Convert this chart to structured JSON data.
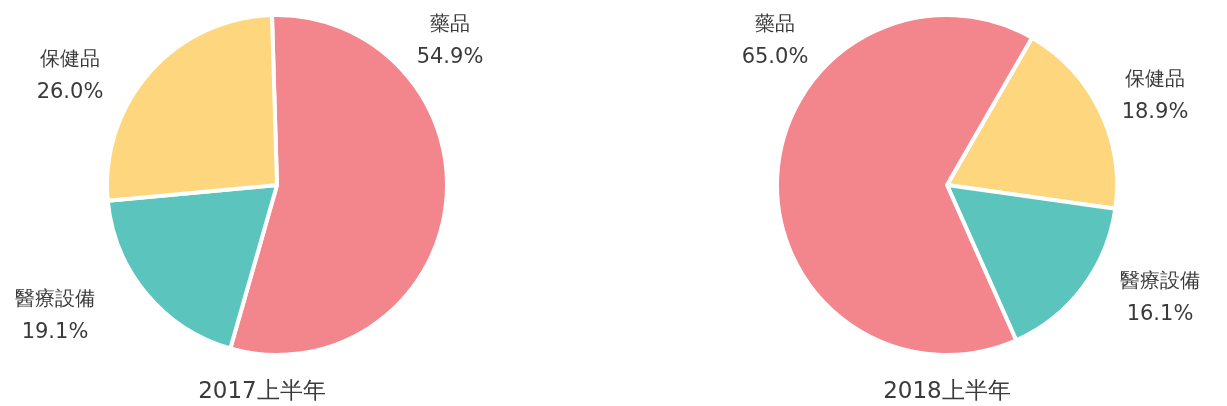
{
  "chart_data": [
    {
      "type": "pie",
      "title": "2017上半年",
      "categories": [
        "藥品",
        "醫療設備",
        "保健品"
      ],
      "values": [
        54.9,
        19.1,
        26.0
      ],
      "colors": [
        "#f3868c",
        "#5bc5bd",
        "#fdd67e"
      ],
      "value_labels": [
        "54.9%",
        "19.1%",
        "26.0%"
      ]
    },
    {
      "type": "pie",
      "title": "2018上半年",
      "categories": [
        "保健品",
        "醫療設備",
        "藥品"
      ],
      "values": [
        18.9,
        16.1,
        65.0
      ],
      "colors": [
        "#fdd67e",
        "#5bc5bd",
        "#f3868c"
      ],
      "value_labels": [
        "18.9%",
        "16.1%",
        "65.0%"
      ]
    }
  ]
}
